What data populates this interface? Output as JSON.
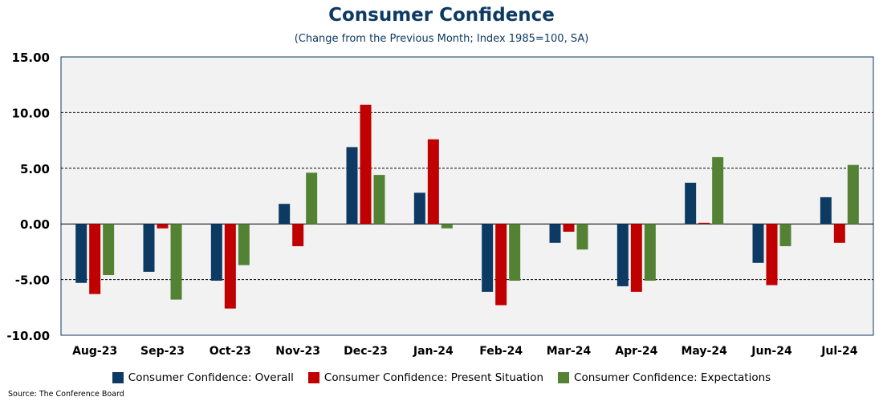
{
  "chart_data": {
    "type": "bar",
    "title": "Consumer Confidence",
    "subtitle": "(Change from the Previous Month; Index 1985=100, SA)",
    "categories": [
      "Aug-23",
      "Sep-23",
      "Oct-23",
      "Nov-23",
      "Dec-23",
      "Jan-24",
      "Feb-24",
      "Mar-24",
      "Apr-24",
      "May-24",
      "Jun-24",
      "Jul-24"
    ],
    "series": [
      {
        "name": "Consumer Confidence: Overall",
        "color": "#0d3a63",
        "values": [
          -5.3,
          -4.3,
          -5.1,
          1.8,
          6.9,
          2.8,
          -6.1,
          -1.7,
          -5.6,
          3.7,
          -3.5,
          2.4
        ]
      },
      {
        "name": "Consumer Confidence: Present Situation",
        "color": "#c00000",
        "values": [
          -6.3,
          -0.4,
          -7.6,
          -2.0,
          10.7,
          7.6,
          -7.3,
          -0.7,
          -6.1,
          0.1,
          -5.5,
          -1.7
        ]
      },
      {
        "name": "Consumer Confidence: Expectations",
        "color": "#548235",
        "values": [
          -4.6,
          -6.8,
          -3.7,
          4.6,
          4.4,
          -0.4,
          -5.1,
          -2.3,
          -5.1,
          6.0,
          -2.0,
          5.3
        ]
      }
    ],
    "ylim": [
      -10,
      15
    ],
    "yticks": [
      -10,
      -5,
      0,
      5,
      10,
      15
    ],
    "ytick_labels": [
      "-10.00",
      "-5.00",
      "0.00",
      "5.00",
      "10.00",
      "15.00"
    ],
    "grid": "dashed horizontal",
    "legend": "bottom",
    "source": "Source: The Conference Board"
  }
}
